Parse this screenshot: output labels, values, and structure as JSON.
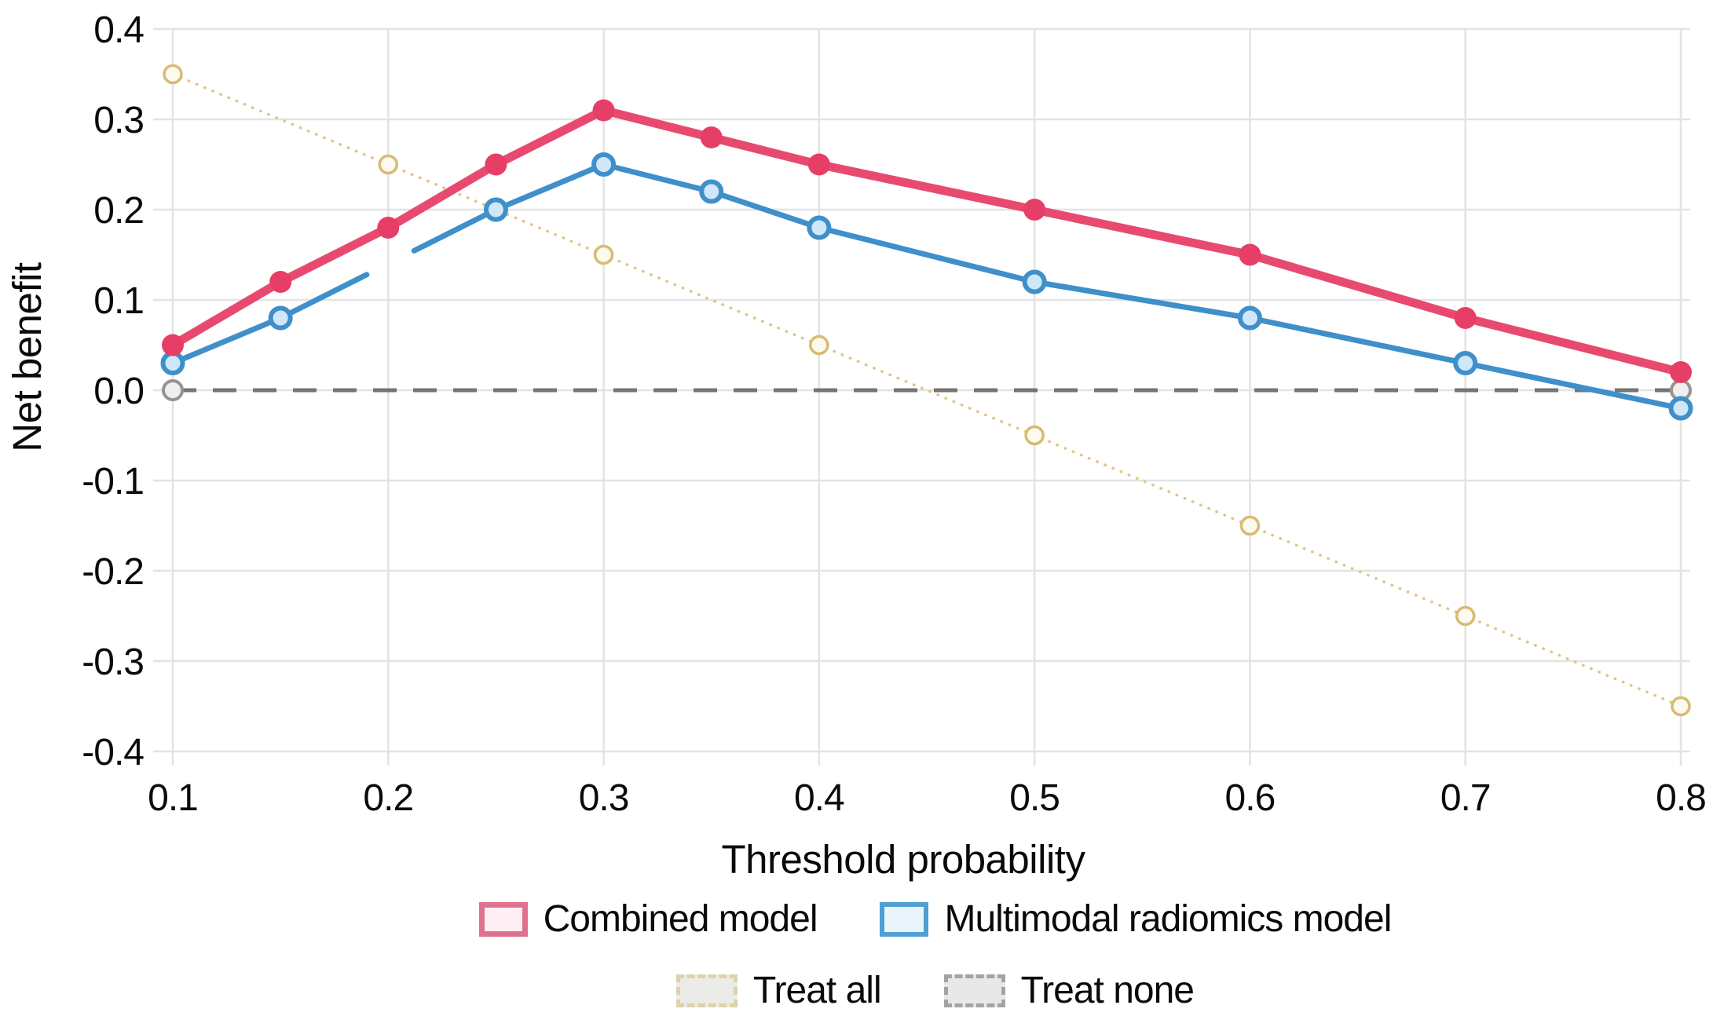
{
  "figure": {
    "background": "#ffffff",
    "text_color": "#0a0a0a",
    "grid_color": "#e3e3e3"
  },
  "chart_data": {
    "type": "line",
    "title": "",
    "xlabel": "Threshold probability",
    "ylabel": "Net benefit",
    "xlim": [
      0.1,
      0.8
    ],
    "ylim": [
      -0.4,
      0.4
    ],
    "x_ticks": [
      0.1,
      0.2,
      0.3,
      0.4,
      0.5,
      0.6,
      0.7,
      0.8
    ],
    "x_tick_labels": [
      "0.1",
      "0.2",
      "0.3",
      "0.4",
      "0.5",
      "0.6",
      "0.7",
      "0.8"
    ],
    "y_ticks": [
      0.4,
      0.3,
      0.2,
      0.1,
      0.0,
      -0.1,
      -0.2,
      -0.3,
      -0.4
    ],
    "y_tick_labels": [
      "0.4",
      "0.3",
      "0.2",
      "0.1",
      "0.0",
      "-0.1",
      "-0.2",
      "-0.3",
      "-0.4"
    ],
    "grid": true,
    "legend_position": "bottom",
    "series": [
      {
        "name": "Treat all",
        "color": "#e0c685",
        "line_style": "dotted",
        "line_width": 3.5,
        "marker": {
          "shape": "open-circle",
          "radius": 11,
          "ring_width": 3.5,
          "ring_color": "#d8ba73",
          "fill": "#fcfaee"
        },
        "x": [
          0.1,
          0.2,
          0.3,
          0.4,
          0.5,
          0.6,
          0.7,
          0.8
        ],
        "y": [
          0.35,
          0.25,
          0.15,
          0.05,
          -0.05,
          -0.15,
          -0.25,
          -0.35
        ]
      },
      {
        "name": "Treat none",
        "color": "#757575",
        "line_style": "dashed",
        "line_width": 5,
        "marker": {
          "shape": "open-circle",
          "radius": 12,
          "ring_width": 4,
          "ring_color": "#949494",
          "fill": "#efefef"
        },
        "x": [
          0.1,
          0.8
        ],
        "y": [
          0.0,
          0.0
        ]
      },
      {
        "name": "Multimodal radiomics model",
        "color": "#3f8fca",
        "line_style": "solid",
        "line_width": 7,
        "marker": {
          "shape": "open-circle",
          "radius": 12.5,
          "ring_width": 6,
          "ring_color": "#3f8fca",
          "fill": "#cfe7f7"
        },
        "x": [
          0.1,
          0.15,
          0.2,
          0.25,
          0.3,
          0.35,
          0.4,
          0.5,
          0.6,
          0.7,
          0.8
        ],
        "y": [
          0.03,
          0.08,
          0.14,
          0.2,
          0.25,
          0.22,
          0.18,
          0.12,
          0.08,
          0.03,
          -0.02
        ],
        "line_gap_x": [
          0.19,
          0.212
        ],
        "marker_skip_x": [
          0.2
        ],
        "note": "visible break in line around x=0.2; marker at 0.2 not visible in figure"
      },
      {
        "name": "Combined model",
        "color": "#e84a6f",
        "line_style": "solid",
        "line_width": 11,
        "marker": {
          "shape": "filled-circle",
          "radius": 14,
          "fill": "#e63e67"
        },
        "x": [
          0.1,
          0.15,
          0.2,
          0.25,
          0.3,
          0.35,
          0.4,
          0.5,
          0.6,
          0.7,
          0.8
        ],
        "y": [
          0.05,
          0.12,
          0.18,
          0.25,
          0.31,
          0.28,
          0.25,
          0.2,
          0.15,
          0.08,
          0.02
        ]
      }
    ]
  },
  "legend": {
    "rows": [
      [
        {
          "label": "Combined model",
          "swatch": {
            "border_style": "solid",
            "border_width": 7,
            "border_color": "#e0718e",
            "fill": "#fdeff3"
          }
        },
        {
          "label": "Multimodal radiomics model",
          "swatch": {
            "border_style": "solid",
            "border_width": 6,
            "border_color": "#4f9fd4",
            "fill": "#e9f4fb"
          }
        }
      ],
      [
        {
          "label": "Treat all",
          "swatch": {
            "border_style": "dashed",
            "border_width": 5,
            "border_color": "#ded2a9",
            "fill": "#ebebe8"
          }
        },
        {
          "label": "Treat none",
          "swatch": {
            "border_style": "dashed",
            "border_width": 5,
            "border_color": "#a3a3a3",
            "fill": "#e8e8e8"
          }
        }
      ]
    ]
  }
}
